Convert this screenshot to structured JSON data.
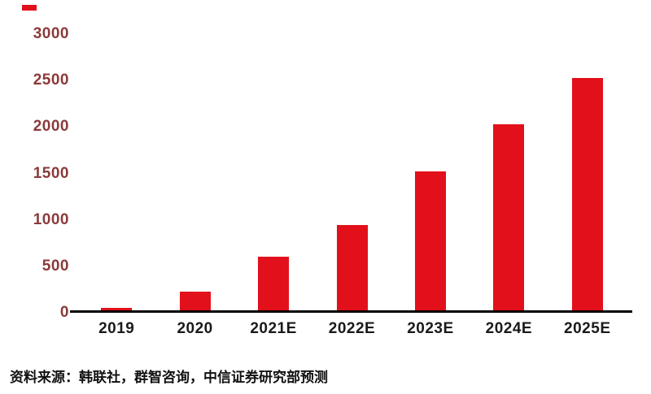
{
  "chart_data": {
    "type": "bar",
    "categories": [
      "2019",
      "2020",
      "2021E",
      "2022E",
      "2023E",
      "2024E",
      "2025E"
    ],
    "values": [
      30,
      200,
      580,
      920,
      1500,
      2000,
      2500
    ],
    "title": "",
    "xlabel": "",
    "ylabel": "",
    "ylim": [
      0,
      3000
    ],
    "yticks": [
      0,
      500,
      1000,
      1500,
      2000,
      2500,
      3000
    ],
    "grid": false,
    "legend": "none",
    "bar_color": "#e2101a",
    "y_axis_label_color": "#8b3a3a",
    "x_axis_label_color": "#1a1a1a",
    "axis_line_color": "#000000"
  },
  "decoration": {
    "top_left_mark_color": "#e2101a"
  },
  "source_note": "资料来源：韩联社，群智咨询，中信证券研究部预测"
}
